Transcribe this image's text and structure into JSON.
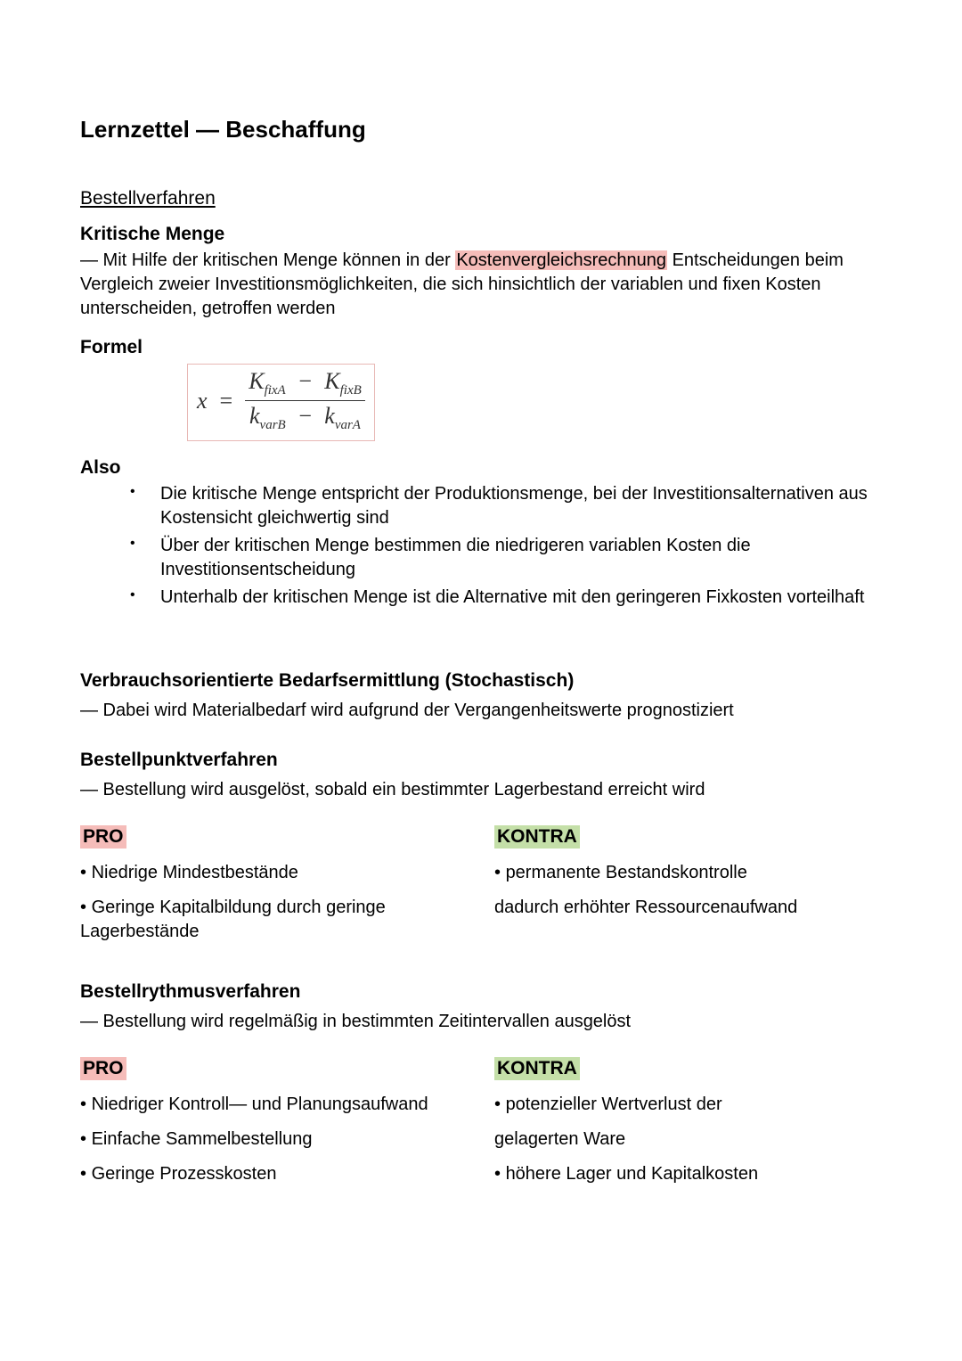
{
  "colors": {
    "background": "#ffffff",
    "text": "#000000",
    "highlight_red": "#f5bcb9",
    "highlight_green": "#c4dfa8",
    "formula_border": "#e8b8b5"
  },
  "title": "Lernzettel — Beschaffung",
  "section_heading": "Bestellverfahren",
  "kritische_menge": {
    "heading": "Kritische Menge",
    "line_prefix": "— Mit Hilfe der kritischen Menge können in der ",
    "highlighted": "Kostenvergleichsrechnung",
    "line_suffix": " Entscheidungen beim Vergleich zweier Investitionsmöglichkeiten, die sich hinsichtlich der variablen und fixen Kosten unterscheiden, getroffen werden"
  },
  "formel": {
    "heading": "Formel",
    "lhs": "x",
    "eq": "=",
    "num_a": "K",
    "num_a_sub": "fixA",
    "minus": "−",
    "num_b": "K",
    "num_b_sub": "fixB",
    "den_a": "k",
    "den_a_sub": "varB",
    "den_b": "k",
    "den_b_sub": "varA"
  },
  "also": {
    "heading": "Also",
    "items": [
      "Die kritische Menge entspricht der Produktionsmenge, bei der Investitionsalternativen aus Kostensicht gleichwertig sind",
      "Über der kritischen Menge bestimmen die niedrigeren variablen Kosten die Investitionsentscheidung",
      "Unterhalb der kritischen Menge ist die Alternative mit den geringeren Fixkosten vorteilhaft"
    ]
  },
  "verbrauch": {
    "heading": "Verbrauchsorientierte Bedarfsermittlung (Stochastisch)",
    "line": "— Dabei wird Materialbedarf wird aufgrund der Vergangenheitswerte prognostiziert"
  },
  "bestellpunkt": {
    "heading": "Bestellpunktverfahren",
    "line": "— Bestellung wird ausgelöst, sobald ein bestimmter Lagerbestand erreicht wird",
    "pro_label": "PRO",
    "kontra_label": "KONTRA",
    "pro": [
      "Niedrige Mindestbestände",
      "Geringe Kapitalbildung durch geringe Lagerbestände"
    ],
    "kontra_bullet": "permanente Bestandskontrolle",
    "kontra_cont": "dadurch erhöhter Ressourcenaufwand"
  },
  "bestellrythmus": {
    "heading": "Bestellrythmusverfahren",
    "line": "— Bestellung wird regelmäßig in bestimmten Zeitintervallen ausgelöst",
    "pro_label": "PRO",
    "kontra_label": "KONTRA",
    "pro": [
      "Niedriger Kontroll— und Planungsaufwand",
      "Einfache Sammelbestellung",
      "Geringe Prozesskosten"
    ],
    "kontra_bullet1": "potenzieller Wertverlust der",
    "kontra_cont1": "gelagerten Ware",
    "kontra_bullet2": "höhere Lager und Kapitalkosten"
  }
}
